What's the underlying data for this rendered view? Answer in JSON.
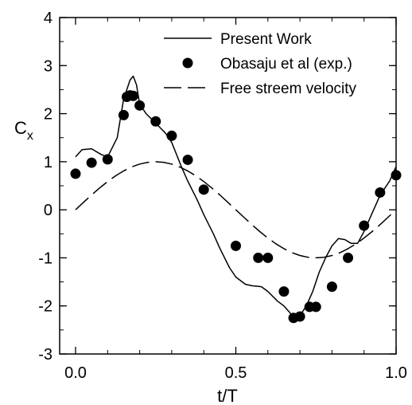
{
  "chart_data": {
    "type": "line",
    "xlabel": "t/T",
    "ylabel": "C",
    "ylabel_sub": "x",
    "xlim": [
      0.0,
      1.0
    ],
    "ylim": [
      -3,
      4
    ],
    "x_ticks": [
      0.0,
      0.5,
      1.0
    ],
    "x_tick_labels": [
      "0.0",
      "0.5",
      "1.0"
    ],
    "y_ticks": [
      -3,
      -2,
      -1,
      0,
      1,
      2,
      3,
      4
    ],
    "y_tick_labels": [
      "-3",
      "-2",
      "-1",
      "0",
      "1",
      "2",
      "3",
      "4"
    ],
    "grid": false,
    "legend_position": "top-right",
    "series": [
      {
        "name": "Present Work",
        "style": "solid",
        "color": "#000000",
        "x": [
          0.0,
          0.02,
          0.05,
          0.08,
          0.1,
          0.13,
          0.15,
          0.17,
          0.18,
          0.19,
          0.2,
          0.22,
          0.25,
          0.28,
          0.3,
          0.33,
          0.35,
          0.38,
          0.4,
          0.43,
          0.45,
          0.48,
          0.5,
          0.53,
          0.55,
          0.58,
          0.6,
          0.63,
          0.65,
          0.67,
          0.68,
          0.7,
          0.72,
          0.74,
          0.76,
          0.78,
          0.8,
          0.82,
          0.84,
          0.86,
          0.88,
          0.9,
          0.93,
          0.95,
          0.98,
          1.0
        ],
        "y": [
          1.1,
          1.25,
          1.27,
          1.15,
          1.1,
          1.5,
          2.3,
          2.7,
          2.78,
          2.6,
          2.2,
          2.0,
          1.8,
          1.6,
          1.4,
          0.9,
          0.6,
          0.2,
          -0.1,
          -0.5,
          -0.8,
          -1.2,
          -1.4,
          -1.55,
          -1.58,
          -1.6,
          -1.7,
          -1.9,
          -2.0,
          -2.15,
          -2.25,
          -2.2,
          -2.0,
          -1.7,
          -1.3,
          -1.0,
          -0.75,
          -0.6,
          -0.62,
          -0.7,
          -0.7,
          -0.45,
          0.0,
          0.3,
          0.6,
          0.9
        ]
      },
      {
        "name": "Obasaju et al (exp.)",
        "style": "markers",
        "color": "#000000",
        "x": [
          0.0,
          0.05,
          0.1,
          0.15,
          0.16,
          0.17,
          0.18,
          0.2,
          0.25,
          0.3,
          0.35,
          0.4,
          0.5,
          0.57,
          0.6,
          0.65,
          0.68,
          0.7,
          0.73,
          0.75,
          0.8,
          0.85,
          0.9,
          0.95,
          1.0
        ],
        "y": [
          0.75,
          0.98,
          1.05,
          1.97,
          2.35,
          2.38,
          2.37,
          2.17,
          1.84,
          1.54,
          1.04,
          0.42,
          -0.75,
          -1.0,
          -1.0,
          -1.7,
          -2.25,
          -2.22,
          -2.02,
          -2.02,
          -1.6,
          -1.0,
          -0.33,
          0.36,
          0.72
        ]
      },
      {
        "name": "Free streem velocity",
        "style": "dashed",
        "color": "#000000",
        "x": [
          0.0,
          0.025,
          0.05,
          0.075,
          0.1,
          0.125,
          0.15,
          0.175,
          0.2,
          0.225,
          0.25,
          0.275,
          0.3,
          0.325,
          0.35,
          0.375,
          0.4,
          0.425,
          0.45,
          0.475,
          0.5,
          0.525,
          0.55,
          0.575,
          0.6,
          0.625,
          0.65,
          0.675,
          0.7,
          0.725,
          0.75,
          0.775,
          0.8,
          0.825,
          0.85,
          0.875,
          0.9,
          0.925,
          0.95,
          0.975,
          1.0
        ],
        "y": [
          0.0,
          0.156,
          0.309,
          0.454,
          0.588,
          0.707,
          0.809,
          0.891,
          0.951,
          0.988,
          1.0,
          0.988,
          0.951,
          0.891,
          0.809,
          0.707,
          0.588,
          0.454,
          0.309,
          0.156,
          0.0,
          -0.156,
          -0.309,
          -0.454,
          -0.588,
          -0.707,
          -0.809,
          -0.891,
          -0.951,
          -0.988,
          -1.0,
          -0.988,
          -0.951,
          -0.891,
          -0.809,
          -0.707,
          -0.588,
          -0.454,
          -0.309,
          -0.156,
          0.0
        ]
      }
    ]
  }
}
